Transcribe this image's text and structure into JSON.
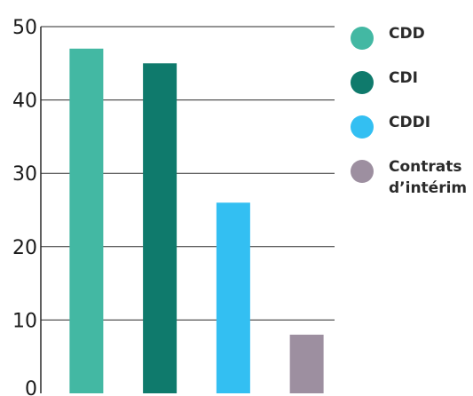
{
  "chart_data": {
    "type": "bar",
    "categories": [
      "CDD",
      "CDI",
      "CDDI",
      "Contrats\nd’intérim"
    ],
    "values": [
      47,
      45,
      26,
      8
    ],
    "colors": [
      "#43b8a3",
      "#0f7a6c",
      "#33bff2",
      "#9d8fa0"
    ],
    "ylim": [
      0,
      50
    ],
    "yticks": [
      0,
      10,
      20,
      30,
      40,
      50
    ],
    "grid": true,
    "legend_position": "right",
    "title": "",
    "xlabel": "",
    "ylabel": ""
  }
}
